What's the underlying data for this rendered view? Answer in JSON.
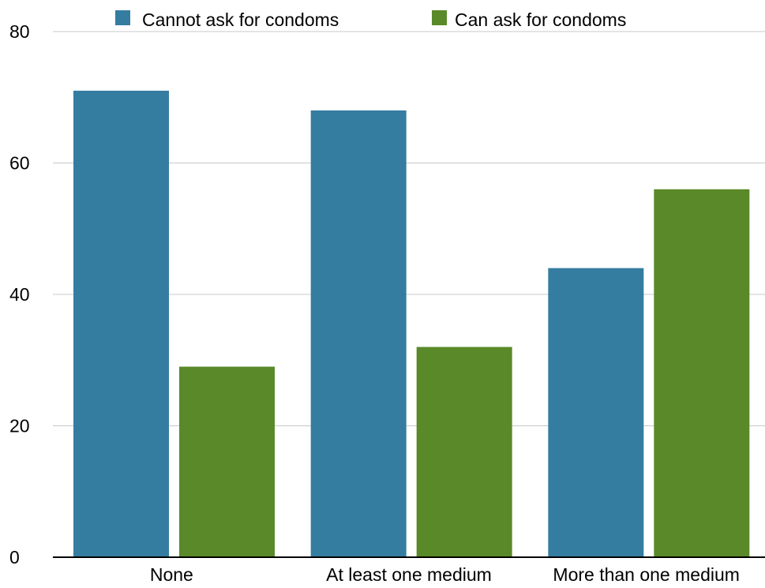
{
  "chart_data": {
    "type": "bar",
    "title": "",
    "xlabel": "",
    "ylabel": "",
    "categories": [
      "None",
      "At least one medium",
      "More than one medium"
    ],
    "series": [
      {
        "name": "Cannot ask for condoms",
        "color": "#357ca1",
        "values": [
          71,
          68,
          44
        ]
      },
      {
        "name": "Can ask for condoms",
        "color": "#5a8929",
        "values": [
          29,
          32,
          56
        ]
      }
    ],
    "ylim": [
      0,
      80
    ],
    "yticks": [
      0,
      20,
      40,
      60,
      80
    ],
    "grid": true,
    "legend": "top-center"
  }
}
